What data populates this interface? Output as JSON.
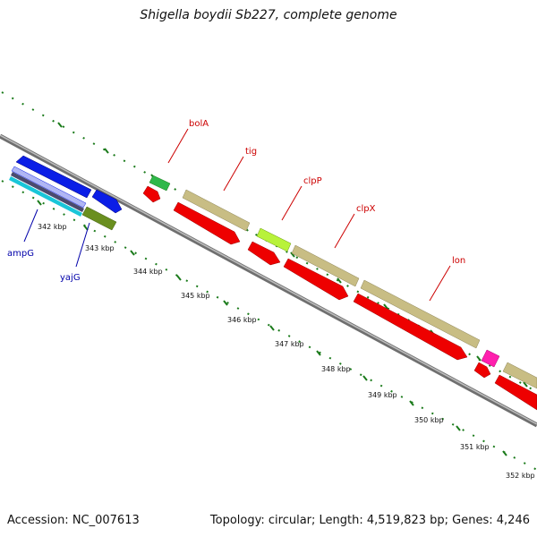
{
  "title": "Shigella boydii Sb227, complete genome",
  "footer": {
    "accession": "Accession: NC_007613",
    "summary": "Topology: circular; Length: 4,519,823 bp; Genes: 4,246"
  },
  "ruler_labels": [
    "342 kbp",
    "343 kbp",
    "344 kbp",
    "345 kbp",
    "346 kbp",
    "347 kbp",
    "348 kbp",
    "349 kbp",
    "350 kbp",
    "351 kbp",
    "352 kbp"
  ],
  "gene_labels": {
    "bolA": "bolA",
    "tig": "tig",
    "clpP": "clpP",
    "clpX": "clpX",
    "lon": "lon",
    "ampG": "ampG",
    "yajG": "yajG"
  },
  "colors": {
    "backbone": "#8a8a8a",
    "tick": "#1a7a1a",
    "cds_forward": "#c8bd84",
    "cds_red": "#ee0000",
    "blue": "#0b1ee6",
    "label_red": "#cc0000",
    "label_blue": "#0000aa"
  }
}
